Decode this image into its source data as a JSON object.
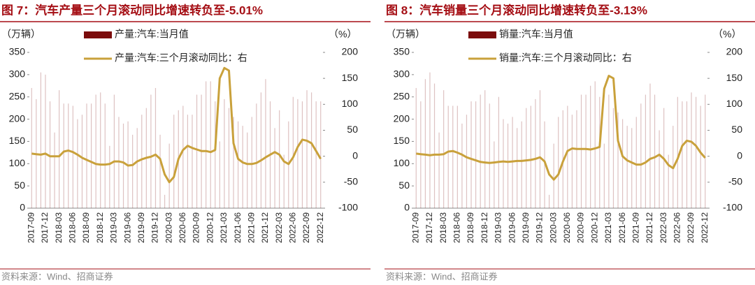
{
  "chart_data": [
    {
      "type": "bar",
      "title": "图 7：汽车产量三个月滚动同比增速转负至-5.01%",
      "y_label": "（万辆）",
      "y2_label": "（%）",
      "source": "资料来源：Wind、招商证券",
      "categories": [
        "2017-09",
        null,
        null,
        "2017-12",
        null,
        null,
        "2018-03",
        null,
        null,
        "2018-06",
        null,
        null,
        "2018-09",
        null,
        null,
        "2018-12",
        null,
        null,
        "2019-03",
        null,
        null,
        "2019-06",
        null,
        null,
        "2019-09",
        null,
        null,
        "2019-12",
        null,
        null,
        "2020-03",
        null,
        null,
        "2020-06",
        null,
        null,
        "2020-09",
        null,
        null,
        "2020-12",
        null,
        null,
        "2021-03",
        null,
        null,
        "2021-06",
        null,
        null,
        "2021-09",
        null,
        null,
        "2021-12",
        null,
        null,
        "2022-03",
        null,
        null,
        "2022-06",
        null,
        null,
        "2022-09",
        null,
        null,
        "2022-12"
      ],
      "ylim": [
        0,
        350
      ],
      "yticks": [
        0,
        50,
        100,
        150,
        200,
        250,
        300,
        350
      ],
      "y2lim": [
        -100,
        200
      ],
      "y2ticks": [
        -100,
        -50,
        0,
        50,
        100,
        150,
        200
      ],
      "series": [
        {
          "name": "产量:汽车:当月值",
          "type": "bar",
          "color": "#7b0c0c",
          "values": [
            270,
            245,
            305,
            300,
            240,
            170,
            265,
            235,
            235,
            230,
            200,
            210,
            235,
            235,
            255,
            260,
            235,
            140,
            255,
            205,
            190,
            195,
            165,
            180,
            210,
            225,
            255,
            270,
            165,
            30,
            145,
            210,
            220,
            230,
            210,
            210,
            255,
            255,
            285,
            285,
            240,
            150,
            245,
            225,
            205,
            195,
            185,
            170,
            205,
            235,
            260,
            290,
            240,
            180,
            220,
            120,
            195,
            250,
            245,
            240,
            265,
            260,
            240,
            240
          ]
        },
        {
          "name": "产量:汽车:三个月滚动同比：右",
          "type": "line",
          "axis": "y2",
          "color": "#c9a13b",
          "values": [
            5,
            4,
            3,
            5,
            0,
            0,
            0,
            9,
            11,
            8,
            3,
            -3,
            -7,
            -11,
            -15,
            -16,
            -16,
            -15,
            -10,
            -10,
            -12,
            -18,
            -17,
            -10,
            -6,
            -3,
            -1,
            3,
            -5,
            -35,
            -50,
            -40,
            -5,
            12,
            20,
            16,
            13,
            10,
            10,
            8,
            12,
            150,
            170,
            165,
            25,
            -5,
            -12,
            -15,
            -15,
            -13,
            -8,
            -2,
            3,
            8,
            3,
            -10,
            -15,
            -2,
            18,
            32,
            30,
            25,
            10,
            -5.01
          ]
        }
      ]
    },
    {
      "type": "bar",
      "title": "图 8：汽车销量三个月滚动同比增速转负至-3.13%",
      "y_label": "（万辆）",
      "y2_label": "（%）",
      "source": "资料来源：Wind、招商证券",
      "categories": [
        "2017-09",
        null,
        null,
        "2017-12",
        null,
        null,
        "2018-03",
        null,
        null,
        "2018-06",
        null,
        null,
        "2018-09",
        null,
        null,
        "2018-12",
        null,
        null,
        "2019-03",
        null,
        null,
        "2019-06",
        null,
        null,
        "2019-09",
        null,
        null,
        "2019-12",
        null,
        null,
        "2020-03",
        null,
        null,
        "2020-06",
        null,
        null,
        "2020-09",
        null,
        null,
        "2020-12",
        null,
        null,
        "2021-03",
        null,
        null,
        "2021-06",
        null,
        null,
        "2021-09",
        null,
        null,
        "2021-12",
        null,
        null,
        "2022-03",
        null,
        null,
        "2022-06",
        null,
        null,
        "2022-09",
        null,
        null,
        "2022-12"
      ],
      "ylim": [
        0,
        350
      ],
      "yticks": [
        0,
        50,
        100,
        150,
        200,
        250,
        300,
        350
      ],
      "y2lim": [
        -100,
        200
      ],
      "y2ticks": [
        -100,
        -50,
        0,
        50,
        100,
        150,
        200
      ],
      "series": [
        {
          "name": "销量:汽车:当月值",
          "type": "bar",
          "color": "#7b0c0c",
          "values": [
            270,
            240,
            290,
            305,
            280,
            170,
            265,
            230,
            230,
            230,
            190,
            210,
            240,
            240,
            255,
            265,
            235,
            150,
            250,
            200,
            190,
            205,
            180,
            195,
            225,
            230,
            245,
            265,
            195,
            30,
            145,
            205,
            220,
            230,
            210,
            220,
            255,
            255,
            275,
            285,
            250,
            145,
            255,
            225,
            215,
            200,
            185,
            180,
            205,
            235,
            255,
            280,
            255,
            175,
            225,
            120,
            185,
            250,
            240,
            240,
            260,
            250,
            230,
            255
          ]
        },
        {
          "name": "销量:汽车:三个月滚动同比：右",
          "type": "line",
          "axis": "y2",
          "color": "#c9a13b",
          "values": [
            5,
            4,
            3,
            2,
            3,
            3,
            4,
            9,
            10,
            7,
            3,
            -2,
            -5,
            -8,
            -11,
            -12,
            -13,
            -12,
            -11,
            -10,
            -11,
            -10,
            -9,
            -9,
            -8,
            -7,
            -5,
            -2,
            -10,
            -35,
            -45,
            -35,
            -10,
            10,
            15,
            14,
            14,
            14,
            13,
            15,
            18,
            130,
            155,
            150,
            30,
            0,
            -8,
            -12,
            -16,
            -16,
            -12,
            -5,
            -2,
            3,
            -5,
            -17,
            -23,
            -5,
            20,
            30,
            28,
            20,
            7,
            -3.13
          ]
        }
      ]
    }
  ]
}
